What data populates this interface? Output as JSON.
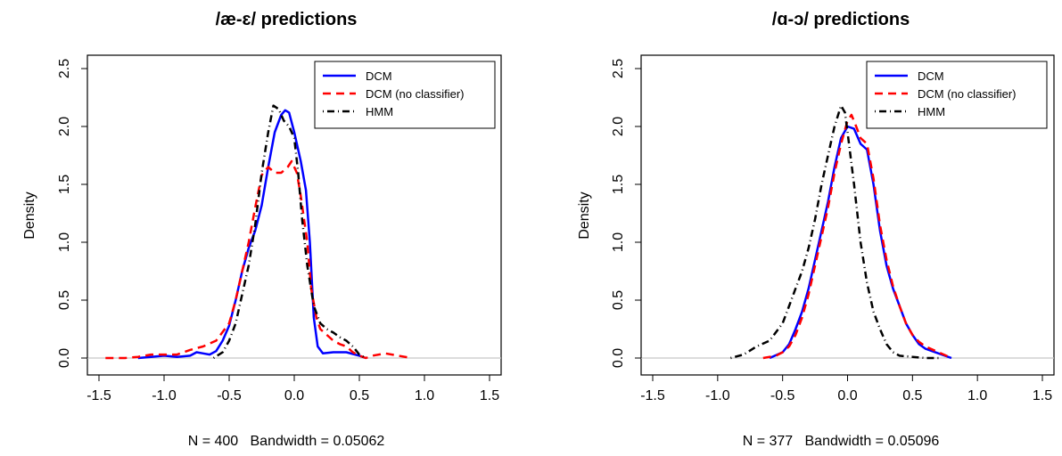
{
  "chart_data": [
    {
      "type": "line",
      "title": "/æ-ɛ/ predictions",
      "xlabel": "N = 400   Bandwidth = 0.05062",
      "ylabel": "Density",
      "xlim": [
        -1.5,
        1.5
      ],
      "ylim": [
        0,
        2.5
      ],
      "xticks": [
        "-1.5",
        "-1.0",
        "-0.5",
        "0.0",
        "0.5",
        "1.0",
        "1.5"
      ],
      "yticks": [
        "0.0",
        "0.5",
        "1.0",
        "1.5",
        "2.0",
        "2.5"
      ],
      "legend_position": "top-right",
      "series": [
        {
          "name": "DCM",
          "color": "#0000ff",
          "dash": "solid",
          "points": [
            [
              -1.2,
              0.0
            ],
            [
              -1.1,
              0.01
            ],
            [
              -1.0,
              0.02
            ],
            [
              -0.9,
              0.01
            ],
            [
              -0.8,
              0.02
            ],
            [
              -0.75,
              0.05
            ],
            [
              -0.7,
              0.04
            ],
            [
              -0.65,
              0.03
            ],
            [
              -0.6,
              0.06
            ],
            [
              -0.55,
              0.15
            ],
            [
              -0.5,
              0.28
            ],
            [
              -0.45,
              0.5
            ],
            [
              -0.4,
              0.75
            ],
            [
              -0.35,
              0.95
            ],
            [
              -0.3,
              1.1
            ],
            [
              -0.25,
              1.32
            ],
            [
              -0.2,
              1.65
            ],
            [
              -0.15,
              1.95
            ],
            [
              -0.1,
              2.1
            ],
            [
              -0.07,
              2.14
            ],
            [
              -0.04,
              2.12
            ],
            [
              0.0,
              1.95
            ],
            [
              0.05,
              1.7
            ],
            [
              0.09,
              1.45
            ],
            [
              0.12,
              1.0
            ],
            [
              0.15,
              0.35
            ],
            [
              0.18,
              0.1
            ],
            [
              0.22,
              0.04
            ],
            [
              0.3,
              0.05
            ],
            [
              0.4,
              0.05
            ],
            [
              0.5,
              0.02
            ],
            [
              0.55,
              0.0
            ]
          ]
        },
        {
          "name": "DCM (no classifier)",
          "color": "#ff0000",
          "dash": "dashed",
          "points": [
            [
              -1.45,
              0.0
            ],
            [
              -1.3,
              0.0
            ],
            [
              -1.2,
              0.01
            ],
            [
              -1.1,
              0.03
            ],
            [
              -1.0,
              0.03
            ],
            [
              -0.9,
              0.03
            ],
            [
              -0.8,
              0.07
            ],
            [
              -0.7,
              0.1
            ],
            [
              -0.6,
              0.15
            ],
            [
              -0.5,
              0.3
            ],
            [
              -0.45,
              0.5
            ],
            [
              -0.4,
              0.75
            ],
            [
              -0.35,
              1.0
            ],
            [
              -0.3,
              1.3
            ],
            [
              -0.25,
              1.58
            ],
            [
              -0.2,
              1.65
            ],
            [
              -0.15,
              1.6
            ],
            [
              -0.1,
              1.6
            ],
            [
              -0.05,
              1.65
            ],
            [
              -0.02,
              1.7
            ],
            [
              0.02,
              1.6
            ],
            [
              0.05,
              1.4
            ],
            [
              0.1,
              1.0
            ],
            [
              0.13,
              0.6
            ],
            [
              0.17,
              0.35
            ],
            [
              0.2,
              0.25
            ],
            [
              0.25,
              0.2
            ],
            [
              0.3,
              0.15
            ],
            [
              0.35,
              0.12
            ],
            [
              0.4,
              0.1
            ],
            [
              0.45,
              0.05
            ],
            [
              0.5,
              0.02
            ],
            [
              0.55,
              0.0
            ],
            [
              0.6,
              0.02
            ],
            [
              0.7,
              0.04
            ],
            [
              0.8,
              0.02
            ],
            [
              0.9,
              0.0
            ]
          ]
        },
        {
          "name": "HMM",
          "color": "#000000",
          "dash": "dotdash",
          "points": [
            [
              -0.62,
              0.0
            ],
            [
              -0.55,
              0.05
            ],
            [
              -0.5,
              0.15
            ],
            [
              -0.45,
              0.3
            ],
            [
              -0.4,
              0.55
            ],
            [
              -0.35,
              0.8
            ],
            [
              -0.3,
              1.15
            ],
            [
              -0.25,
              1.6
            ],
            [
              -0.2,
              1.95
            ],
            [
              -0.16,
              2.18
            ],
            [
              -0.12,
              2.15
            ],
            [
              -0.08,
              2.05
            ],
            [
              -0.04,
              2.0
            ],
            [
              0.0,
              1.9
            ],
            [
              0.03,
              1.6
            ],
            [
              0.06,
              1.2
            ],
            [
              0.1,
              0.8
            ],
            [
              0.15,
              0.45
            ],
            [
              0.2,
              0.3
            ],
            [
              0.25,
              0.25
            ],
            [
              0.3,
              0.22
            ],
            [
              0.35,
              0.18
            ],
            [
              0.4,
              0.15
            ],
            [
              0.45,
              0.1
            ],
            [
              0.5,
              0.03
            ],
            [
              0.55,
              0.0
            ]
          ]
        }
      ]
    },
    {
      "type": "line",
      "title": "/ɑ-ɔ/ predictions",
      "xlabel": "N = 377   Bandwidth = 0.05096",
      "ylabel": "Density",
      "xlim": [
        -1.5,
        1.5
      ],
      "ylim": [
        0,
        2.5
      ],
      "xticks": [
        "-1.5",
        "-1.0",
        "-0.5",
        "0.0",
        "0.5",
        "1.0",
        "1.5"
      ],
      "yticks": [
        "0.0",
        "0.5",
        "1.0",
        "1.5",
        "2.0",
        "2.5"
      ],
      "legend_position": "top-right",
      "series": [
        {
          "name": "DCM",
          "color": "#0000ff",
          "dash": "solid",
          "points": [
            [
              -0.6,
              0.0
            ],
            [
              -0.5,
              0.05
            ],
            [
              -0.45,
              0.12
            ],
            [
              -0.4,
              0.25
            ],
            [
              -0.35,
              0.4
            ],
            [
              -0.3,
              0.6
            ],
            [
              -0.25,
              0.85
            ],
            [
              -0.2,
              1.1
            ],
            [
              -0.15,
              1.35
            ],
            [
              -0.1,
              1.65
            ],
            [
              -0.05,
              1.9
            ],
            [
              0.0,
              2.0
            ],
            [
              0.05,
              1.98
            ],
            [
              0.1,
              1.85
            ],
            [
              0.15,
              1.8
            ],
            [
              0.2,
              1.5
            ],
            [
              0.25,
              1.1
            ],
            [
              0.3,
              0.8
            ],
            [
              0.35,
              0.6
            ],
            [
              0.4,
              0.45
            ],
            [
              0.45,
              0.3
            ],
            [
              0.5,
              0.2
            ],
            [
              0.55,
              0.12
            ],
            [
              0.6,
              0.08
            ],
            [
              0.7,
              0.04
            ],
            [
              0.8,
              0.0
            ]
          ]
        },
        {
          "name": "DCM (no classifier)",
          "color": "#ff0000",
          "dash": "dashed",
          "points": [
            [
              -0.65,
              0.0
            ],
            [
              -0.55,
              0.02
            ],
            [
              -0.5,
              0.05
            ],
            [
              -0.45,
              0.1
            ],
            [
              -0.4,
              0.2
            ],
            [
              -0.35,
              0.35
            ],
            [
              -0.3,
              0.55
            ],
            [
              -0.25,
              0.8
            ],
            [
              -0.2,
              1.05
            ],
            [
              -0.15,
              1.3
            ],
            [
              -0.1,
              1.6
            ],
            [
              -0.05,
              1.85
            ],
            [
              0.0,
              2.05
            ],
            [
              0.03,
              2.1
            ],
            [
              0.06,
              2.02
            ],
            [
              0.1,
              1.9
            ],
            [
              0.15,
              1.85
            ],
            [
              0.2,
              1.55
            ],
            [
              0.25,
              1.15
            ],
            [
              0.3,
              0.85
            ],
            [
              0.35,
              0.62
            ],
            [
              0.4,
              0.45
            ],
            [
              0.45,
              0.3
            ],
            [
              0.5,
              0.2
            ],
            [
              0.55,
              0.14
            ],
            [
              0.6,
              0.1
            ],
            [
              0.7,
              0.05
            ],
            [
              0.8,
              0.0
            ]
          ]
        },
        {
          "name": "HMM",
          "color": "#000000",
          "dash": "dotdash",
          "points": [
            [
              -0.9,
              0.0
            ],
            [
              -0.8,
              0.03
            ],
            [
              -0.7,
              0.1
            ],
            [
              -0.6,
              0.15
            ],
            [
              -0.5,
              0.3
            ],
            [
              -0.45,
              0.45
            ],
            [
              -0.4,
              0.6
            ],
            [
              -0.35,
              0.75
            ],
            [
              -0.3,
              0.95
            ],
            [
              -0.25,
              1.2
            ],
            [
              -0.2,
              1.5
            ],
            [
              -0.15,
              1.75
            ],
            [
              -0.1,
              2.0
            ],
            [
              -0.05,
              2.18
            ],
            [
              -0.02,
              2.12
            ],
            [
              0.0,
              1.95
            ],
            [
              0.05,
              1.5
            ],
            [
              0.1,
              1.0
            ],
            [
              0.15,
              0.65
            ],
            [
              0.2,
              0.4
            ],
            [
              0.25,
              0.25
            ],
            [
              0.3,
              0.12
            ],
            [
              0.35,
              0.05
            ],
            [
              0.4,
              0.02
            ],
            [
              0.5,
              0.01
            ],
            [
              0.6,
              0.0
            ],
            [
              0.7,
              0.0
            ]
          ]
        }
      ]
    }
  ]
}
